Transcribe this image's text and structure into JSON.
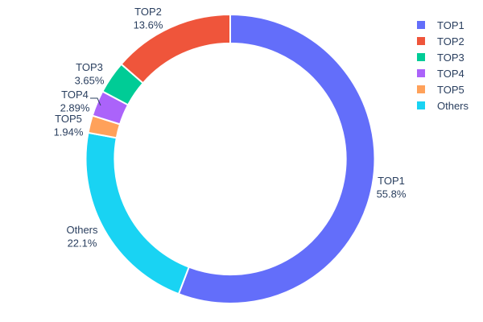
{
  "chart_data": {
    "type": "pie",
    "subtype": "donut",
    "title": "",
    "hole": 0.8,
    "background": "#ffffff",
    "text_color": "#2a3f5f",
    "slice_border_color": "#ffffff",
    "slices": [
      {
        "name": "TOP1",
        "value": 55.8,
        "pct": "55.8%",
        "color": "#636EFA"
      },
      {
        "name": "TOP2",
        "value": 13.6,
        "pct": "13.6%",
        "color": "#EF553B"
      },
      {
        "name": "TOP3",
        "value": 3.65,
        "pct": "3.65%",
        "color": "#00CC96"
      },
      {
        "name": "TOP4",
        "value": 2.89,
        "pct": "2.89%",
        "color": "#AB63FA"
      },
      {
        "name": "TOP5",
        "value": 1.94,
        "pct": "1.94%",
        "color": "#FFA15A"
      },
      {
        "name": "Others",
        "value": 22.1,
        "pct": "22.1%",
        "color": "#19D3F3"
      }
    ],
    "clockwise_order_from_top": [
      "TOP1",
      "Others",
      "TOP5",
      "TOP4",
      "TOP3",
      "TOP2"
    ],
    "legend": {
      "position": "right",
      "entries": [
        "TOP1",
        "TOP2",
        "TOP3",
        "TOP4",
        "TOP5",
        "Others"
      ]
    }
  }
}
